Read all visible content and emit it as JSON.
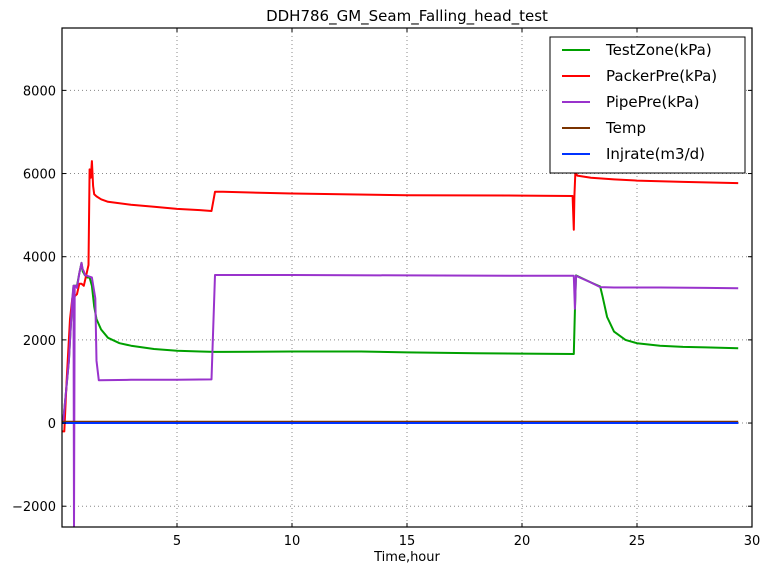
{
  "chart_data": {
    "type": "line",
    "title": "DDH786_GM_Seam_Falling_head_test",
    "xlabel": "Time,hour",
    "ylabel": "",
    "xlim": [
      0,
      30
    ],
    "ylim": [
      -2500,
      9500
    ],
    "grid": true,
    "legend_position": "upper right",
    "x_ticks": [
      5,
      10,
      15,
      20,
      25,
      30
    ],
    "y_ticks": [
      -2000,
      0,
      2000,
      4000,
      6000,
      8000
    ],
    "x_tick_labels": [
      "5",
      "10",
      "15",
      "20",
      "25",
      "30"
    ],
    "y_tick_labels": [
      "−2000",
      "0",
      "2000",
      "4000",
      "6000",
      "8000"
    ],
    "series": [
      {
        "name": "TestZone(kPa)",
        "color": "#00a000",
        "x": [
          0.05,
          0.3,
          0.4,
          0.5,
          0.6,
          0.65,
          0.75,
          0.85,
          0.9,
          1.0,
          1.05,
          1.1,
          1.2,
          1.3,
          1.4,
          1.5,
          1.7,
          2.0,
          2.5,
          3.0,
          4.0,
          5.0,
          6.0,
          6.6,
          7.0,
          10.0,
          13.0,
          15.0,
          18.0,
          20.0,
          22.25,
          22.3,
          22.35,
          23.0,
          23.4,
          23.5,
          23.7,
          24.0,
          24.5,
          25.0,
          26.0,
          27.0,
          28.0,
          29.4
        ],
        "values": [
          0,
          1500,
          2500,
          3300,
          3300,
          3300,
          3600,
          3850,
          3650,
          3550,
          3550,
          3500,
          3500,
          3300,
          2800,
          2500,
          2250,
          2050,
          1920,
          1860,
          1780,
          1740,
          1720,
          1710,
          1710,
          1720,
          1720,
          1700,
          1680,
          1670,
          1660,
          2700,
          3550,
          3380,
          3280,
          3050,
          2550,
          2200,
          2000,
          1920,
          1860,
          1830,
          1820,
          1800
        ]
      },
      {
        "name": "PackerPre(kPa)",
        "color": "#ff0000",
        "x": [
          0.0,
          0.1,
          0.2,
          0.35,
          0.45,
          0.55,
          0.65,
          0.75,
          0.85,
          0.95,
          1.05,
          1.15,
          1.2,
          1.25,
          1.3,
          1.35,
          1.4,
          1.5,
          1.7,
          2.0,
          3.0,
          4.0,
          5.0,
          6.0,
          6.5,
          6.65,
          7.0,
          10.0,
          15.0,
          20.0,
          22.2,
          22.25,
          22.28,
          22.32,
          22.4,
          23.0,
          24.0,
          25.0,
          27.0,
          29.4
        ],
        "values": [
          -200,
          -200,
          1000,
          2500,
          3000,
          3050,
          3100,
          3350,
          3350,
          3300,
          3550,
          3800,
          6100,
          5900,
          6300,
          5700,
          5500,
          5450,
          5380,
          5320,
          5250,
          5200,
          5150,
          5120,
          5100,
          5560,
          5560,
          5520,
          5480,
          5470,
          5460,
          4650,
          5460,
          6050,
          5950,
          5900,
          5860,
          5830,
          5800,
          5770
        ]
      },
      {
        "name": "PipePre(kPa)",
        "color": "#9933cc",
        "x": [
          0.05,
          0.3,
          0.45,
          0.5,
          0.52,
          0.55,
          0.6,
          0.65,
          0.75,
          0.85,
          0.9,
          0.95,
          1.0,
          1.05,
          1.15,
          1.3,
          1.45,
          1.5,
          1.6,
          3.0,
          5.0,
          6.5,
          6.65,
          7.0,
          10.0,
          15.0,
          20.0,
          22.25,
          22.3,
          22.35,
          23.0,
          23.4,
          24.0,
          26.0,
          28.0,
          29.4
        ],
        "values": [
          0,
          1500,
          3000,
          3300,
          -2500,
          3300,
          3300,
          3250,
          3600,
          3850,
          3700,
          3650,
          3550,
          3550,
          3530,
          3500,
          3000,
          1500,
          1030,
          1040,
          1040,
          1050,
          3560,
          3560,
          3560,
          3550,
          3540,
          3540,
          2750,
          3540,
          3380,
          3270,
          3260,
          3260,
          3250,
          3240
        ]
      },
      {
        "name": "Temp",
        "color": "#7a3300",
        "x": [
          0.0,
          29.4
        ],
        "values": [
          30,
          30
        ]
      },
      {
        "name": "Injrate(m3/d)",
        "color": "#0033ff",
        "x": [
          0.0,
          29.4
        ],
        "values": [
          0,
          0
        ]
      }
    ]
  },
  "legend": {
    "items": [
      {
        "label": "TestZone(kPa)",
        "color": "#00a000"
      },
      {
        "label": "PackerPre(kPa)",
        "color": "#ff0000"
      },
      {
        "label": "PipePre(kPa)",
        "color": "#9933cc"
      },
      {
        "label": "Temp",
        "color": "#7a3300"
      },
      {
        "label": "Injrate(m3/d)",
        "color": "#0033ff"
      }
    ]
  }
}
